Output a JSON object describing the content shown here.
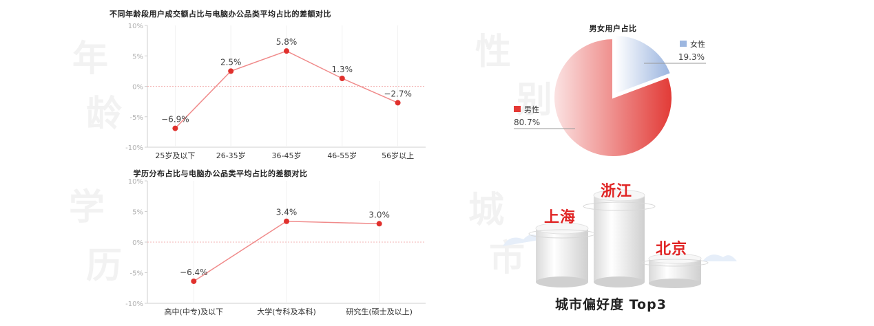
{
  "chart_data": [
    {
      "type": "line",
      "title": "不同年龄段用户成交额占比与电脑办公品类平均占比的差额对比",
      "categories": [
        "25岁及以下",
        "26-35岁",
        "36-45岁",
        "46-55岁",
        "56岁以上"
      ],
      "values": [
        -6.9,
        2.5,
        5.8,
        1.3,
        -2.7
      ],
      "data_labels": [
        "−6.9%",
        "2.5%",
        "5.8%",
        "1.3%",
        "−2.7%"
      ],
      "yticks": [
        "10%",
        "5%",
        "0%",
        "-5%",
        "-10%"
      ],
      "ylim": [
        -10,
        10
      ],
      "grid": "vertical",
      "line_color": "#f08a8a",
      "marker_color": "#e0302c",
      "zero_line_color": "#f3b3b3",
      "watermark": [
        "年",
        "龄"
      ]
    },
    {
      "type": "line",
      "title": "学历分布占比与电脑办公品类平均占比的差额对比",
      "categories": [
        "高中(中专)及以下",
        "大学(专科及本科)",
        "研究生(硕士及以上)"
      ],
      "values": [
        -6.4,
        3.4,
        3.0
      ],
      "data_labels": [
        "−6.4%",
        "3.4%",
        "3.0%"
      ],
      "yticks": [
        "10%",
        "5%",
        "0%",
        "-5%",
        "-10%"
      ],
      "ylim": [
        -10,
        10
      ],
      "grid": "vertical",
      "line_color": "#f08a8a",
      "marker_color": "#e0302c",
      "zero_line_color": "#f3b3b3",
      "watermark": [
        "学",
        "历"
      ]
    },
    {
      "type": "pie",
      "title": "男女用户占比",
      "slices": [
        {
          "name": "女性",
          "value": 19.3,
          "label": "19.3%",
          "color": "#9db7e0"
        },
        {
          "name": "男性",
          "value": 80.7,
          "label": "80.7%",
          "color": "#e53935"
        }
      ],
      "watermark": [
        "性",
        "别"
      ]
    }
  ],
  "cities": {
    "caption": "城市偏好度 Top3",
    "first": "浙江",
    "second": "上海",
    "third": "北京",
    "watermark": [
      "城",
      "市"
    ]
  }
}
